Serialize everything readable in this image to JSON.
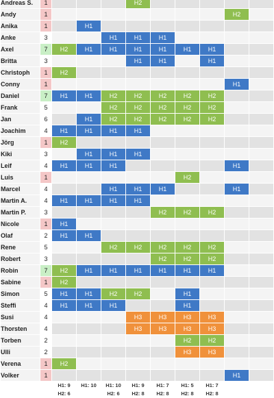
{
  "slot_count": 9,
  "rows": [
    {
      "name": "Andreas S.",
      "count": "1",
      "count_color": "pink",
      "slots": [
        "",
        "",
        "",
        "H2",
        "",
        "",
        "",
        "",
        ""
      ]
    },
    {
      "name": "Andy",
      "count": "1",
      "count_color": "pink",
      "slots": [
        "",
        "",
        "",
        "",
        "",
        "",
        "",
        "H2",
        ""
      ]
    },
    {
      "name": "Anika",
      "count": "1",
      "count_color": "pink",
      "slots": [
        "",
        "H1",
        "",
        "",
        "",
        "",
        "",
        "",
        ""
      ]
    },
    {
      "name": "Anke",
      "count": "3",
      "count_color": "plain",
      "slots": [
        "",
        "",
        "H1",
        "H1",
        "H1",
        "",
        "",
        "",
        ""
      ]
    },
    {
      "name": "Axel",
      "count": "7",
      "count_color": "lgreen",
      "slots": [
        "H2",
        "H1",
        "H1",
        "H1",
        "H1",
        "H1",
        "H1",
        "",
        ""
      ]
    },
    {
      "name": "Britta",
      "count": "3",
      "count_color": "plain",
      "slots": [
        "",
        "",
        "",
        "H1",
        "H1",
        "",
        "H1",
        "",
        ""
      ]
    },
    {
      "name": "Christoph",
      "count": "1",
      "count_color": "pink",
      "slots": [
        "H2",
        "",
        "",
        "",
        "",
        "",
        "",
        "",
        ""
      ]
    },
    {
      "name": "Conny",
      "count": "1",
      "count_color": "pink",
      "slots": [
        "",
        "",
        "",
        "",
        "",
        "",
        "",
        "H1",
        ""
      ]
    },
    {
      "name": "Daniel",
      "count": "7",
      "count_color": "lgreen",
      "slots": [
        "H1",
        "H1",
        "H2",
        "H2",
        "H2",
        "H2",
        "H2",
        "",
        ""
      ]
    },
    {
      "name": "Frank",
      "count": "5",
      "count_color": "plain",
      "slots": [
        "",
        "",
        "H2",
        "H2",
        "H2",
        "H2",
        "H2",
        "",
        ""
      ]
    },
    {
      "name": "Jan",
      "count": "6",
      "count_color": "plain",
      "slots": [
        "",
        "H1",
        "H2",
        "H2",
        "H2",
        "H2",
        "H2",
        "",
        ""
      ]
    },
    {
      "name": "Joachim",
      "count": "4",
      "count_color": "plain",
      "slots": [
        "H1",
        "H1",
        "H1",
        "H1",
        "",
        "",
        "",
        "",
        ""
      ]
    },
    {
      "name": "Jörg",
      "count": "1",
      "count_color": "pink",
      "slots": [
        "H2",
        "",
        "",
        "",
        "",
        "",
        "",
        "",
        ""
      ]
    },
    {
      "name": "Kiki",
      "count": "3",
      "count_color": "plain",
      "slots": [
        "",
        "H1",
        "H1",
        "H1",
        "",
        "",
        "",
        "",
        ""
      ]
    },
    {
      "name": "Leif",
      "count": "4",
      "count_color": "plain",
      "slots": [
        "H1",
        "H1",
        "H1",
        "",
        "",
        "",
        "",
        "H1",
        ""
      ]
    },
    {
      "name": "Luis",
      "count": "1",
      "count_color": "pink",
      "slots": [
        "",
        "",
        "",
        "",
        "",
        "H2",
        "",
        "",
        ""
      ]
    },
    {
      "name": "Marcel",
      "count": "4",
      "count_color": "plain",
      "slots": [
        "",
        "",
        "H1",
        "H1",
        "H1",
        "",
        "",
        "H1",
        ""
      ]
    },
    {
      "name": "Martin A.",
      "count": "4",
      "count_color": "plain",
      "slots": [
        "H1",
        "H1",
        "H1",
        "H1",
        "",
        "",
        "",
        "",
        ""
      ]
    },
    {
      "name": "Martin P.",
      "count": "3",
      "count_color": "plain",
      "slots": [
        "",
        "",
        "",
        "",
        "H2",
        "H2",
        "H2",
        "",
        ""
      ]
    },
    {
      "name": "Nicole",
      "count": "1",
      "count_color": "pink",
      "slots": [
        "H1",
        "",
        "",
        "",
        "",
        "",
        "",
        "",
        ""
      ]
    },
    {
      "name": "Olaf",
      "count": "2",
      "count_color": "plain",
      "slots": [
        "H1",
        "H1",
        "",
        "",
        "",
        "",
        "",
        "",
        ""
      ]
    },
    {
      "name": "Rene",
      "count": "5",
      "count_color": "plain",
      "slots": [
        "",
        "",
        "H2",
        "H2",
        "H2",
        "H2",
        "H2",
        "",
        ""
      ]
    },
    {
      "name": "Robert",
      "count": "3",
      "count_color": "plain",
      "slots": [
        "",
        "",
        "",
        "",
        "H2",
        "H2",
        "H2",
        "",
        ""
      ]
    },
    {
      "name": "Robin",
      "count": "7",
      "count_color": "lgreen",
      "slots": [
        "H2",
        "H1",
        "H1",
        "H1",
        "H1",
        "H1",
        "H1",
        "",
        ""
      ]
    },
    {
      "name": "Sabine",
      "count": "1",
      "count_color": "pink",
      "slots": [
        "H2",
        "",
        "",
        "",
        "",
        "",
        "",
        "",
        ""
      ]
    },
    {
      "name": "Simon",
      "count": "5",
      "count_color": "plain",
      "slots": [
        "H1",
        "H1",
        "H2",
        "H2",
        "",
        "H1",
        "",
        "",
        ""
      ]
    },
    {
      "name": "Steffi",
      "count": "4",
      "count_color": "plain",
      "slots": [
        "H1",
        "H1",
        "H1",
        "",
        "",
        "H1",
        "",
        "",
        ""
      ]
    },
    {
      "name": "Susi",
      "count": "4",
      "count_color": "plain",
      "slots": [
        "",
        "",
        "",
        "H3",
        "H3",
        "H3",
        "H3",
        "",
        ""
      ]
    },
    {
      "name": "Thorsten",
      "count": "4",
      "count_color": "plain",
      "slots": [
        "",
        "",
        "",
        "H3",
        "H3",
        "H3",
        "H3",
        "",
        ""
      ]
    },
    {
      "name": "Torben",
      "count": "2",
      "count_color": "plain",
      "slots": [
        "",
        "",
        "",
        "",
        "",
        "H2",
        "H2",
        "",
        ""
      ]
    },
    {
      "name": "Ulli",
      "count": "2",
      "count_color": "plain",
      "slots": [
        "",
        "",
        "",
        "",
        "",
        "H3",
        "H3",
        "",
        ""
      ]
    },
    {
      "name": "Verena",
      "count": "1",
      "count_color": "pink",
      "slots": [
        "H2",
        "",
        "",
        "",
        "",
        "",
        "",
        "",
        ""
      ]
    },
    {
      "name": "Volker",
      "count": "1",
      "count_color": "pink",
      "slots": [
        "",
        "",
        "",
        "",
        "",
        "",
        "",
        "H1",
        ""
      ]
    }
  ],
  "totals_h1": [
    "H1: 9",
    "H1: 10",
    "H1: 10",
    "H1: 9",
    "H1: 7",
    "H1: 5",
    "H1: 7",
    "",
    ""
  ],
  "totals_h2": [
    "H2: 6",
    "",
    "H2: 6",
    "H2: 8",
    "H2: 8",
    "H2: 8",
    "H2: 8",
    "",
    ""
  ],
  "colors": {
    "H1": "#3f79c6",
    "H2": "#8fbe50",
    "H3": "#f0913b",
    "pink": "#f4c7c7",
    "light_green": "#c9efc6"
  }
}
